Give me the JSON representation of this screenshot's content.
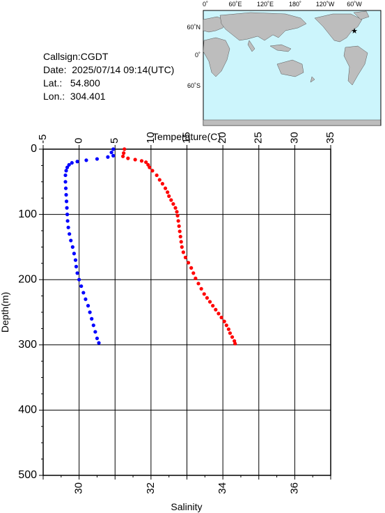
{
  "info": {
    "callsign_label": "Callsign:",
    "callsign": "CGDT",
    "date_label": "Date:",
    "date": "2025/07/14 09:14(UTC)",
    "lat_label": "Lat.:",
    "lat": "54.800",
    "lon_label": "Lon.:",
    "lon": "304.401"
  },
  "map": {
    "lon_ticks": [
      "0˚",
      "60˚E",
      "120˚E",
      "180˚",
      "120˚W",
      "60˚W"
    ],
    "lat_ticks": [
      "60˚N",
      "0˚",
      "60˚S"
    ],
    "ocean_color": "#ccf5fc",
    "land_color": "#bdbdbd",
    "marker_color": "#ff0000",
    "marker_label": "★"
  },
  "chart_data": {
    "type": "scatter",
    "xlabel_top": "Temperature(C)",
    "xlabel_bottom": "Salinity",
    "ylabel": "Depth(m)",
    "temperature_axis": {
      "range": [
        -5,
        35
      ],
      "ticks": [
        -5,
        0,
        5,
        10,
        15,
        20,
        25,
        30,
        35
      ]
    },
    "salinity_axis": {
      "range": [
        29,
        37
      ],
      "ticks": [
        30,
        32,
        34,
        36
      ]
    },
    "depth_axis": {
      "range": [
        0,
        500
      ],
      "inverted": true,
      "ticks": [
        0,
        100,
        200,
        300,
        400,
        500
      ]
    },
    "grid": true,
    "series": [
      {
        "color": "#ff0000",
        "axis": "temperature",
        "points": [
          [
            6.3,
            0
          ],
          [
            6.2,
            6
          ],
          [
            6.1,
            11
          ],
          [
            6.8,
            14
          ],
          [
            7.8,
            16
          ],
          [
            8.7,
            18
          ],
          [
            9.3,
            20
          ],
          [
            9.6,
            24
          ],
          [
            9.8,
            28
          ],
          [
            10.2,
            33
          ],
          [
            10.8,
            40
          ],
          [
            11.2,
            47
          ],
          [
            11.6,
            53
          ],
          [
            12.0,
            60
          ],
          [
            12.3,
            66
          ],
          [
            12.5,
            72
          ],
          [
            12.8,
            78
          ],
          [
            13.1,
            84
          ],
          [
            13.4,
            90
          ],
          [
            13.6,
            96
          ],
          [
            13.7,
            102
          ],
          [
            13.8,
            110
          ],
          [
            13.9,
            118
          ],
          [
            14.0,
            126
          ],
          [
            14.1,
            134
          ],
          [
            14.2,
            142
          ],
          [
            14.3,
            150
          ],
          [
            14.5,
            158
          ],
          [
            14.8,
            166
          ],
          [
            15.2,
            174
          ],
          [
            15.6,
            182
          ],
          [
            15.9,
            190
          ],
          [
            16.2,
            198
          ],
          [
            16.6,
            206
          ],
          [
            17.0,
            214
          ],
          [
            17.4,
            222
          ],
          [
            17.8,
            228
          ],
          [
            18.2,
            234
          ],
          [
            18.6,
            240
          ],
          [
            19.0,
            246
          ],
          [
            19.4,
            252
          ],
          [
            19.8,
            258
          ],
          [
            20.2,
            264
          ],
          [
            20.5,
            270
          ],
          [
            20.8,
            276
          ],
          [
            21.0,
            282
          ],
          [
            21.3,
            288
          ],
          [
            21.6,
            294
          ],
          [
            21.7,
            298
          ]
        ]
      },
      {
        "color": "#0000ff",
        "axis": "salinity",
        "points": [
          [
            30.95,
            0
          ],
          [
            30.9,
            5
          ],
          [
            30.95,
            10
          ],
          [
            30.8,
            12
          ],
          [
            30.5,
            15
          ],
          [
            30.2,
            17
          ],
          [
            29.95,
            19
          ],
          [
            29.8,
            21
          ],
          [
            29.72,
            24
          ],
          [
            29.67,
            28
          ],
          [
            29.64,
            33
          ],
          [
            29.62,
            40
          ],
          [
            29.62,
            50
          ],
          [
            29.63,
            60
          ],
          [
            29.64,
            70
          ],
          [
            29.65,
            80
          ],
          [
            29.66,
            90
          ],
          [
            29.67,
            100
          ],
          [
            29.68,
            110
          ],
          [
            29.7,
            120
          ],
          [
            29.73,
            130
          ],
          [
            29.77,
            140
          ],
          [
            29.82,
            150
          ],
          [
            29.86,
            160
          ],
          [
            29.9,
            170
          ],
          [
            29.92,
            180
          ],
          [
            29.95,
            190
          ],
          [
            30.0,
            200
          ],
          [
            30.06,
            210
          ],
          [
            30.12,
            220
          ],
          [
            30.18,
            230
          ],
          [
            30.25,
            240
          ],
          [
            30.3,
            250
          ],
          [
            30.35,
            260
          ],
          [
            30.4,
            270
          ],
          [
            30.45,
            280
          ],
          [
            30.5,
            290
          ],
          [
            30.55,
            297
          ]
        ]
      }
    ]
  }
}
